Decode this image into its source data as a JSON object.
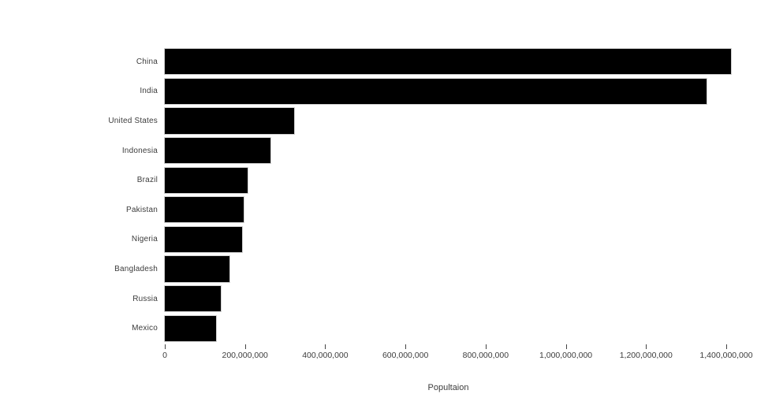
{
  "chart_data": {
    "type": "bar",
    "orientation": "horizontal",
    "title": "",
    "xlabel": "Popultaion",
    "ylabel": "",
    "categories": [
      "China",
      "India",
      "United States",
      "Indonesia",
      "Brazil",
      "Pakistan",
      "Nigeria",
      "Bangladesh",
      "Russia",
      "Mexico"
    ],
    "values": [
      1415000000,
      1354000000,
      327000000,
      267000000,
      211000000,
      201000000,
      196000000,
      166000000,
      144000000,
      131000000
    ],
    "xlim": [
      0,
      1417000000
    ],
    "xticks": {
      "values": [
        0,
        200000000,
        400000000,
        600000000,
        800000000,
        1000000000,
        1200000000,
        1400000000
      ],
      "labels": [
        "0",
        "200,000,000",
        "400,000,000",
        "600,000,000",
        "800,000,000",
        "1,000,000,000",
        "1,200,000,000",
        "1,400,000,000"
      ]
    },
    "grid": false,
    "legend": false,
    "bar_color": "#000000",
    "text_color": "#3c3c3c",
    "background_color": "#ffffff"
  }
}
